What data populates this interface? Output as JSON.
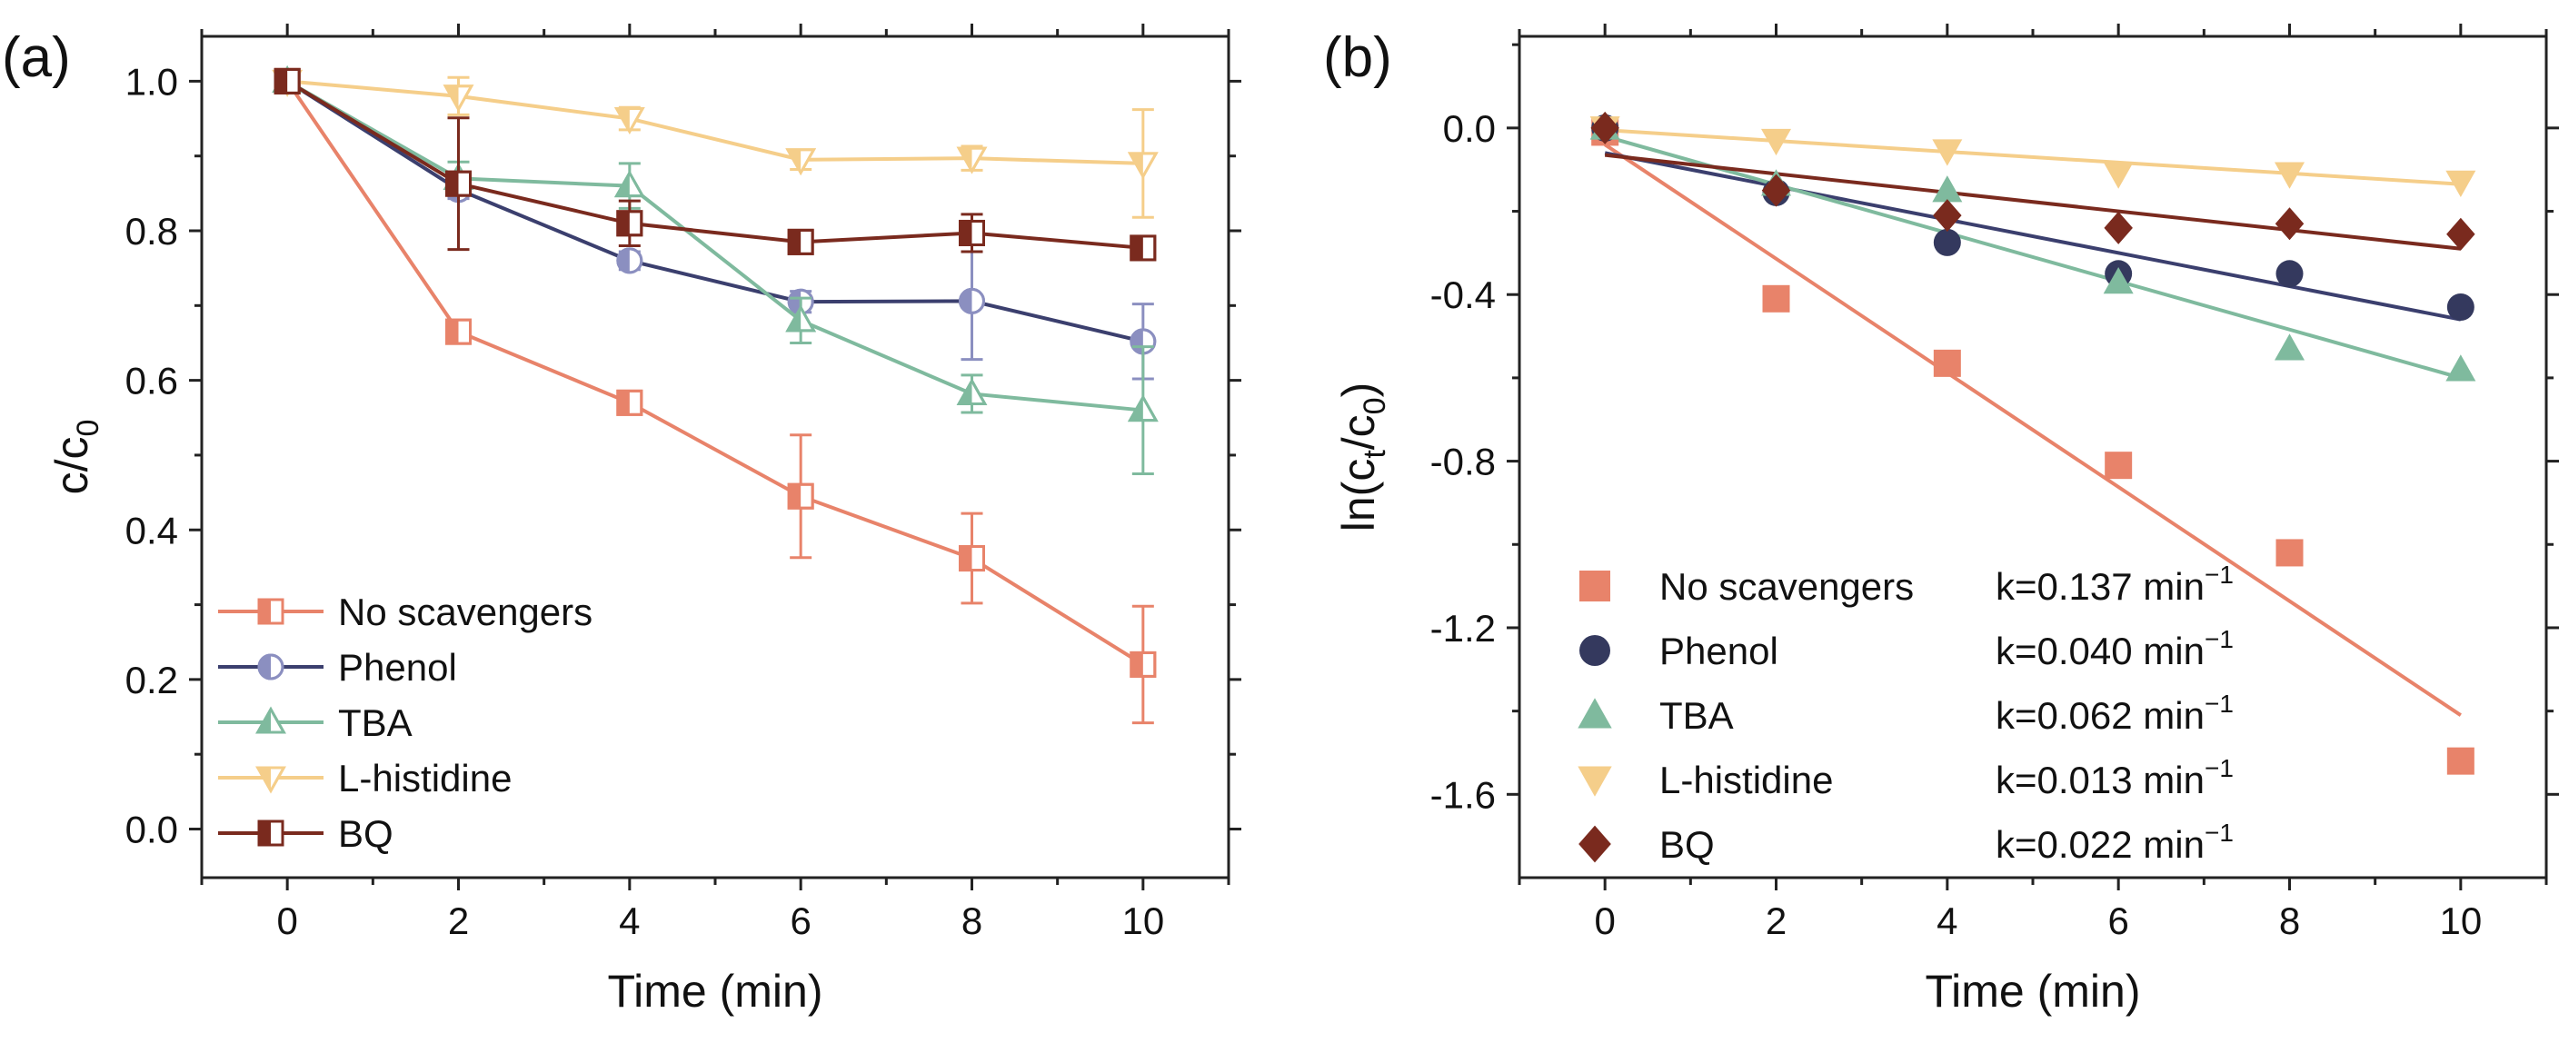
{
  "figure": {
    "panel_a_label": "(a)",
    "panel_b_label": "(b)"
  },
  "chart_data": [
    {
      "type": "line",
      "panel": "(a)",
      "xlabel": "Time (min)",
      "ylabel_main": "c/c",
      "ylabel_sub": "0",
      "xlim": [
        -1,
        11
      ],
      "ylim": [
        -0.065,
        1.06
      ],
      "xticks": [
        0,
        2,
        4,
        6,
        8,
        10
      ],
      "yticks": [
        0.0,
        0.2,
        0.4,
        0.6,
        0.8,
        1.0
      ],
      "ytick_labels": [
        "0.0",
        "0.2",
        "0.4",
        "0.6",
        "0.8",
        "1.0"
      ],
      "legend_position": "bottom-left",
      "x": [
        0,
        2,
        4,
        6,
        8,
        10
      ],
      "series": [
        {
          "name": "No scavengers",
          "values": [
            1.0,
            0.665,
            0.57,
            0.445,
            0.362,
            0.22
          ],
          "errors": [
            0.0,
            0.012,
            0.012,
            0.082,
            0.06,
            0.078
          ],
          "color": "#E8836A",
          "marker": "square-half"
        },
        {
          "name": "Phenol",
          "values": [
            1.0,
            0.855,
            0.76,
            0.705,
            0.706,
            0.652
          ],
          "errors": [
            0.0,
            0.012,
            0.012,
            0.014,
            0.078,
            0.05
          ],
          "color": "#8B8FC0",
          "line_color": "#3B3F6E",
          "marker": "circle-half"
        },
        {
          "name": "TBA",
          "values": [
            1.0,
            0.87,
            0.86,
            0.68,
            0.582,
            0.56
          ],
          "errors": [
            0.0,
            0.022,
            0.03,
            0.03,
            0.025,
            0.085
          ],
          "color": "#7FBA9E",
          "marker": "triangle-up-half"
        },
        {
          "name": "L-histidine",
          "values": [
            1.0,
            0.98,
            0.95,
            0.895,
            0.897,
            0.89
          ],
          "errors": [
            0.0,
            0.025,
            0.015,
            0.013,
            0.016,
            0.072
          ],
          "color": "#F5CE8A",
          "marker": "triangle-down-half"
        },
        {
          "name": "BQ",
          "values": [
            1.0,
            0.863,
            0.81,
            0.785,
            0.797,
            0.777
          ],
          "errors": [
            0.0,
            0.088,
            0.03,
            0.015,
            0.025,
            0.01
          ],
          "color": "#7A2A1E",
          "marker": "square-half"
        }
      ]
    },
    {
      "type": "scatter",
      "panel": "(b)",
      "xlabel": "Time (min)",
      "ylabel_pre": "ln(c",
      "ylabel_sub1": "t",
      "ylabel_mid": "/c",
      "ylabel_sub2": "0",
      "ylabel_post": ")",
      "xlim": [
        -1,
        11
      ],
      "ylim": [
        -1.8,
        0.22
      ],
      "xticks": [
        0,
        2,
        4,
        6,
        8,
        10
      ],
      "yticks": [
        0.0,
        -0.4,
        -0.8,
        -1.2,
        -1.6
      ],
      "ytick_labels": [
        "0.0",
        "-0.4",
        "-0.8",
        "-1.2",
        "-1.6"
      ],
      "legend_position": "bottom-left",
      "x": [
        0,
        2,
        4,
        6,
        8,
        10
      ],
      "series": [
        {
          "name": "No scavengers",
          "k_label": "k=0.137 min",
          "k_exp": "−1",
          "values": [
            -0.01,
            -0.41,
            -0.565,
            -0.81,
            -1.02,
            -1.52
          ],
          "fit": [
            -0.04,
            -1.41
          ],
          "color": "#E8836A",
          "marker": "square"
        },
        {
          "name": "Phenol",
          "k_label": "k=0.040 min",
          "k_exp": "−1",
          "values": [
            0.0,
            -0.155,
            -0.275,
            -0.35,
            -0.35,
            -0.43
          ],
          "fit": [
            -0.06,
            -0.46
          ],
          "color": "#34395E",
          "line_color": "#3B3F6E",
          "marker": "circle"
        },
        {
          "name": "TBA",
          "k_label": "k=0.062 min",
          "k_exp": "−1",
          "values": [
            0.0,
            -0.135,
            -0.15,
            -0.37,
            -0.53,
            -0.58
          ],
          "fit": [
            -0.02,
            -0.6
          ],
          "color": "#7FBA9E",
          "marker": "triangle-up"
        },
        {
          "name": "L-histidine",
          "k_label": "k=0.013 min",
          "k_exp": "−1",
          "values": [
            0.0,
            -0.03,
            -0.055,
            -0.11,
            -0.11,
            -0.13
          ],
          "fit": [
            -0.005,
            -0.135
          ],
          "color": "#F5CE8A",
          "marker": "triangle-down"
        },
        {
          "name": "BQ",
          "k_label": "k=0.022 min",
          "k_exp": "−1",
          "values": [
            0.0,
            -0.15,
            -0.21,
            -0.24,
            -0.23,
            -0.255
          ],
          "fit": [
            -0.065,
            -0.29
          ],
          "color": "#7A2A1E",
          "marker": "diamond"
        }
      ]
    }
  ]
}
